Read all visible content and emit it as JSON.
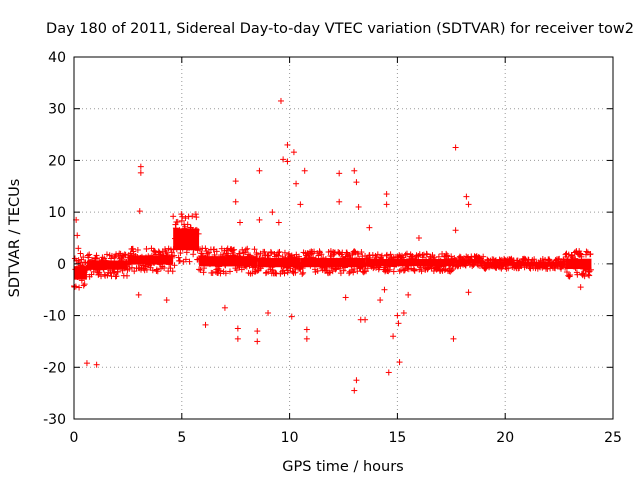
{
  "chart_data": {
    "type": "scatter",
    "title": "Day 180 of 2011, Sidereal Day-to-day VTEC variation (SDTVAR) for receiver tow2",
    "xlabel": "GPS time / hours",
    "ylabel": "SDTVAR / TECUs",
    "xlim": [
      0,
      25
    ],
    "ylim": [
      -30,
      40
    ],
    "xticks": [
      0,
      5,
      10,
      15,
      20,
      25
    ],
    "yticks": [
      -30,
      -20,
      -10,
      0,
      10,
      20,
      30,
      40
    ],
    "xtick_labels": [
      "0",
      "5",
      "10",
      "15",
      "20",
      "25"
    ],
    "ytick_labels": [
      "-30",
      "-20",
      "-10",
      "0",
      "10",
      "20",
      "30",
      "40"
    ],
    "grid": true,
    "legend": "none",
    "marker": "+",
    "color": "#ff0000",
    "series": [
      {
        "name": "tow2",
        "points": [
          [
            0.1,
            8.5
          ],
          [
            0.15,
            5.5
          ],
          [
            0.2,
            3.0
          ],
          [
            0.3,
            2.0
          ],
          [
            0.6,
            -19.2
          ],
          [
            1.05,
            -19.5
          ],
          [
            3.1,
            18.8
          ],
          [
            3.1,
            17.6
          ],
          [
            3.05,
            10.2
          ],
          [
            3.0,
            -6.0
          ],
          [
            4.3,
            -7.0
          ],
          [
            6.1,
            -11.8
          ],
          [
            7.0,
            -8.5
          ],
          [
            7.5,
            16.0
          ],
          [
            7.5,
            12.0
          ],
          [
            7.7,
            8.0
          ],
          [
            7.6,
            -12.5
          ],
          [
            7.6,
            -14.5
          ],
          [
            8.5,
            -13.0
          ],
          [
            8.5,
            -15.0
          ],
          [
            8.6,
            18.0
          ],
          [
            8.6,
            8.5
          ],
          [
            9.0,
            -9.5
          ],
          [
            9.2,
            10.0
          ],
          [
            9.5,
            8.0
          ],
          [
            9.6,
            31.5
          ],
          [
            9.7,
            20.2
          ],
          [
            9.9,
            23.0
          ],
          [
            9.9,
            19.8
          ],
          [
            10.1,
            -10.2
          ],
          [
            10.2,
            21.6
          ],
          [
            10.3,
            15.5
          ],
          [
            10.5,
            11.5
          ],
          [
            10.7,
            18.0
          ],
          [
            10.8,
            -12.7
          ],
          [
            10.8,
            -14.5
          ],
          [
            12.3,
            17.5
          ],
          [
            12.3,
            12.0
          ],
          [
            12.6,
            -6.5
          ],
          [
            13.0,
            -24.5
          ],
          [
            13.1,
            -22.5
          ],
          [
            13.0,
            18.0
          ],
          [
            13.1,
            15.8
          ],
          [
            13.2,
            11.0
          ],
          [
            13.3,
            -10.8
          ],
          [
            13.5,
            -10.8
          ],
          [
            13.7,
            7.0
          ],
          [
            14.2,
            -7.0
          ],
          [
            14.4,
            -5.0
          ],
          [
            14.5,
            13.5
          ],
          [
            14.5,
            11.5
          ],
          [
            14.6,
            -21.0
          ],
          [
            14.8,
            -14.0
          ],
          [
            15.0,
            -10.0
          ],
          [
            15.05,
            -11.5
          ],
          [
            15.1,
            -19.0
          ],
          [
            15.3,
            -9.5
          ],
          [
            15.5,
            -6.0
          ],
          [
            16.0,
            5.0
          ],
          [
            17.7,
            22.5
          ],
          [
            17.6,
            -14.5
          ],
          [
            17.7,
            6.5
          ],
          [
            18.2,
            13.0
          ],
          [
            18.3,
            11.5
          ],
          [
            18.3,
            -5.5
          ],
          [
            23.5,
            -4.5
          ]
        ],
        "band_segments": [
          {
            "from": 0.0,
            "to": 0.6,
            "low": -5.0,
            "high": 1.5
          },
          {
            "from": 0.6,
            "to": 2.5,
            "low": -2.5,
            "high": 2.0
          },
          {
            "from": 2.5,
            "to": 4.6,
            "low": -1.5,
            "high": 3.0
          },
          {
            "from": 4.6,
            "to": 5.8,
            "low": -0.5,
            "high": 10.0
          },
          {
            "from": 5.8,
            "to": 8.5,
            "low": -2.0,
            "high": 3.0
          },
          {
            "from": 8.5,
            "to": 10.5,
            "low": -2.0,
            "high": 2.5
          },
          {
            "from": 10.5,
            "to": 13.5,
            "low": -2.0,
            "high": 2.5
          },
          {
            "from": 13.5,
            "to": 17.6,
            "low": -1.5,
            "high": 2.0
          },
          {
            "from": 17.6,
            "to": 19.0,
            "low": -0.5,
            "high": 1.5
          },
          {
            "from": 19.0,
            "to": 22.8,
            "low": -1.0,
            "high": 1.0
          },
          {
            "from": 22.8,
            "to": 24.0,
            "low": -2.5,
            "high": 2.5
          }
        ]
      }
    ]
  }
}
